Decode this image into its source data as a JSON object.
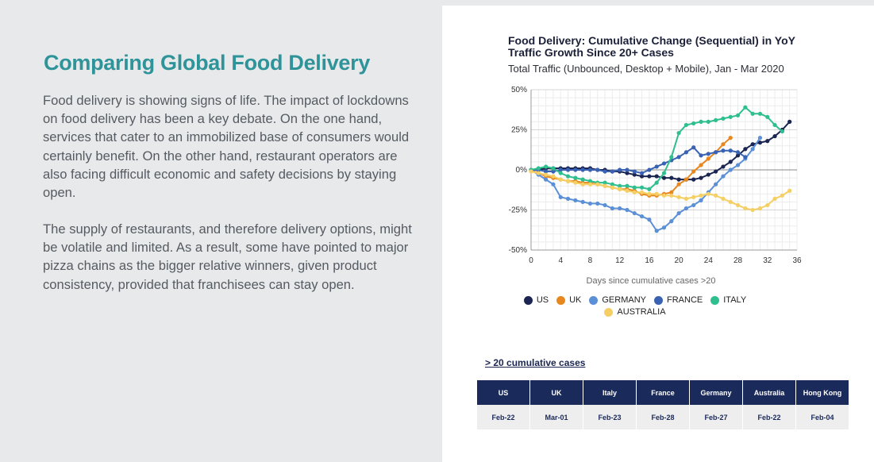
{
  "slide": {
    "title": "Comparing Global Food Delivery",
    "paragraph1": "Food delivery is showing signs of life. The impact of lockdowns on food delivery has been a key debate. On the one hand, services that cater to an immobilized base of consumers would certainly benefit. On the other hand, restaurant operators are also facing difficult economic and safety decisions by staying open.",
    "paragraph2": "The supply of restaurants, and therefore delivery options, might be volatile and limited. As a result, some have pointed to major pizza chains as the bigger relative winners, given product consistency, provided that franchisees can stay open."
  },
  "chart_data": {
    "type": "line",
    "title": "Food Delivery: Cumulative Change (Sequential) in YoY Traffic Growth Since 20+ Cases",
    "subtitle": "Total Traffic (Unbounced, Desktop + Mobile), Jan - Mar 2020",
    "xlabel": "Days since cumulative cases >20",
    "ylabel": "",
    "xlim": [
      0,
      36
    ],
    "ylim": [
      -50,
      50
    ],
    "x_ticks": [
      0,
      4,
      8,
      12,
      16,
      20,
      24,
      28,
      32,
      36
    ],
    "y_ticks": [
      50,
      25,
      0,
      -25,
      -50
    ],
    "y_tick_labels": [
      "50%",
      "25%",
      "0%",
      "-25%",
      "-50%"
    ],
    "grid": true,
    "legend_position": "bottom",
    "series": [
      {
        "name": "US",
        "color": "#1b2552",
        "x": [
          0,
          1,
          2,
          3,
          4,
          5,
          6,
          7,
          8,
          9,
          10,
          11,
          12,
          13,
          14,
          15,
          16,
          17,
          18,
          19,
          20,
          21,
          22,
          23,
          24,
          25,
          26,
          27,
          28,
          29,
          30,
          31,
          32,
          33,
          34,
          35
        ],
        "values": [
          0,
          0,
          1,
          1,
          1,
          1,
          1,
          1,
          1,
          0,
          0,
          -1,
          -1,
          -2,
          -3,
          -4,
          -4,
          -4,
          -5,
          -5,
          -6,
          -6,
          -6,
          -5,
          -3,
          -1,
          2,
          5,
          9,
          13,
          16,
          17,
          18,
          21,
          25,
          30
        ]
      },
      {
        "name": "UK",
        "color": "#e8871e",
        "x": [
          0,
          1,
          2,
          3,
          4,
          5,
          6,
          7,
          8,
          9,
          10,
          11,
          12,
          13,
          14,
          15,
          16,
          17,
          18,
          19,
          20,
          21,
          22,
          23,
          24,
          25,
          26,
          27
        ],
        "values": [
          0,
          -2,
          -4,
          -5,
          -6,
          -7,
          -7,
          -8,
          -8,
          -9,
          -10,
          -11,
          -12,
          -12,
          -13,
          -15,
          -16,
          -16,
          -15,
          -14,
          -9,
          -6,
          -1,
          3,
          7,
          11,
          16,
          20
        ]
      },
      {
        "name": "GERMANY",
        "color": "#5b8fd6",
        "x": [
          0,
          1,
          2,
          3,
          4,
          5,
          6,
          7,
          8,
          9,
          10,
          11,
          12,
          13,
          14,
          15,
          16,
          17,
          18,
          19,
          20,
          21,
          22,
          23,
          24,
          25,
          26,
          27,
          28,
          29,
          30,
          31
        ],
        "values": [
          0,
          -3,
          -6,
          -9,
          -17,
          -18,
          -19,
          -20,
          -21,
          -21,
          -22,
          -24,
          -24,
          -25,
          -27,
          -29,
          -31,
          -38,
          -36,
          -32,
          -27,
          -24,
          -22,
          -19,
          -14,
          -9,
          -4,
          0,
          3,
          7,
          13,
          20
        ]
      },
      {
        "name": "FRANCE",
        "color": "#3a62b3",
        "x": [
          0,
          1,
          2,
          3,
          4,
          5,
          6,
          7,
          8,
          9,
          10,
          11,
          12,
          13,
          14,
          15,
          16,
          17,
          18,
          19,
          20,
          21,
          22,
          23,
          24,
          25,
          26,
          27,
          28,
          29
        ],
        "values": [
          0,
          0,
          -1,
          -1,
          0,
          0,
          0,
          0,
          0,
          0,
          -1,
          -1,
          0,
          0,
          -1,
          -2,
          0,
          2,
          4,
          6,
          8,
          11,
          14,
          9,
          10,
          11,
          12,
          12,
          11,
          8
        ]
      },
      {
        "name": "ITALY",
        "color": "#2fbf8e",
        "x": [
          0,
          1,
          2,
          3,
          4,
          5,
          6,
          7,
          8,
          9,
          10,
          11,
          12,
          13,
          14,
          15,
          16,
          17,
          18,
          19,
          20,
          21,
          22,
          23,
          24,
          25,
          26,
          27,
          28,
          29,
          30,
          31,
          32,
          33,
          34
        ],
        "values": [
          0,
          1,
          2,
          1,
          -2,
          -4,
          -5,
          -6,
          -7,
          -8,
          -8,
          -9,
          -10,
          -10,
          -11,
          -11,
          -12,
          -8,
          -2,
          8,
          23,
          28,
          29,
          30,
          30,
          31,
          32,
          33,
          34,
          39,
          35,
          35,
          33,
          28,
          24
        ]
      },
      {
        "name": "AUSTRALIA",
        "color": "#f5cf63",
        "x": [
          0,
          1,
          2,
          3,
          4,
          5,
          6,
          7,
          8,
          9,
          10,
          11,
          12,
          13,
          14,
          15,
          16,
          17,
          18,
          19,
          20,
          21,
          22,
          23,
          24,
          25,
          26,
          27,
          28,
          29,
          30,
          31,
          32,
          33,
          34,
          35
        ],
        "values": [
          -1,
          -2,
          -3,
          -4,
          -6,
          -7,
          -8,
          -9,
          -9,
          -9,
          -10,
          -11,
          -12,
          -13,
          -14,
          -14,
          -15,
          -15,
          -16,
          -16,
          -17,
          -18,
          -17,
          -16,
          -15,
          -16,
          -18,
          -20,
          -22,
          -24,
          -25,
          -24,
          -22,
          -18,
          -16,
          -13
        ]
      }
    ]
  },
  "cases": {
    "link_text": "> 20 cumulative cases",
    "headers": [
      "US",
      "UK",
      "Italy",
      "France",
      "Germany",
      "Australia",
      "Hong Kong"
    ],
    "dates": [
      "Feb-22",
      "Mar-01",
      "Feb-23",
      "Feb-28",
      "Feb-27",
      "Feb-22",
      "Feb-04"
    ]
  }
}
